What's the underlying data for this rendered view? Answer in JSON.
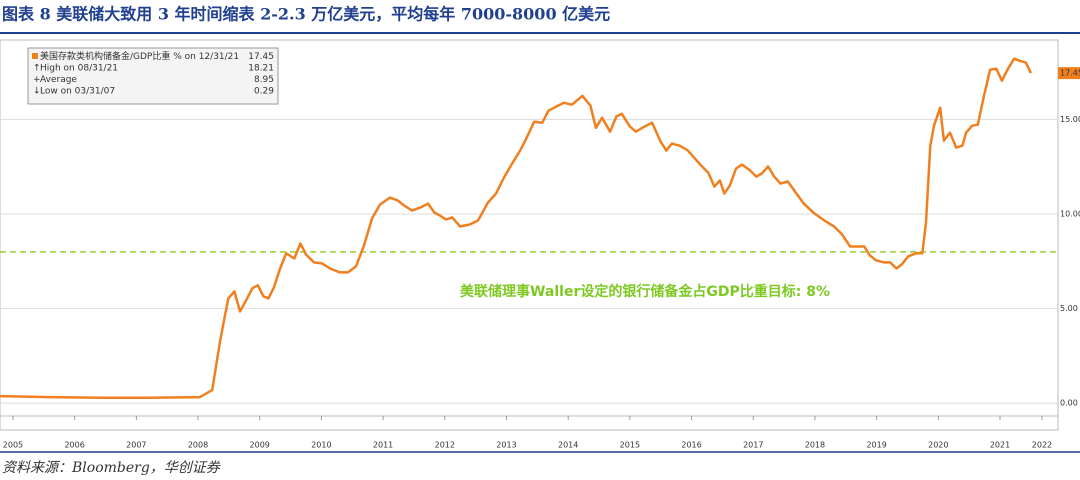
{
  "header": {
    "title": "图表 8  美联储大致用 3 年时间缩表 2-2.3 万亿美元，平均每年 7000-8000 亿美元"
  },
  "chart_data": {
    "type": "line",
    "x": [
      2005.29,
      2006.1,
      2006.91,
      2007.72,
      2008.53,
      2008.73,
      2008.86,
      2008.99,
      2009.09,
      2009.18,
      2009.28,
      2009.38,
      2009.47,
      2009.56,
      2009.64,
      2009.73,
      2009.83,
      2009.93,
      2010.06,
      2010.16,
      2010.25,
      2010.38,
      2010.51,
      2010.64,
      2010.8,
      2010.93,
      2011.06,
      2011.19,
      2011.32,
      2011.45,
      2011.61,
      2011.74,
      2011.84,
      2011.97,
      2012.1,
      2012.23,
      2012.33,
      2012.42,
      2012.52,
      2012.62,
      2012.75,
      2012.91,
      2013.04,
      2013.2,
      2013.33,
      2013.46,
      2013.59,
      2013.72,
      2013.82,
      2013.95,
      2014.08,
      2014.18,
      2014.3,
      2014.43,
      2014.56,
      2014.73,
      2014.86,
      2014.95,
      2015.05,
      2015.18,
      2015.28,
      2015.37,
      2015.5,
      2015.6,
      2015.7,
      2015.86,
      2015.99,
      2016.09,
      2016.18,
      2016.31,
      2016.44,
      2016.64,
      2016.77,
      2016.87,
      2016.96,
      2017.03,
      2017.12,
      2017.22,
      2017.32,
      2017.45,
      2017.55,
      2017.64,
      2017.74,
      2017.84,
      2017.94,
      2018.06,
      2018.19,
      2018.32,
      2018.49,
      2018.65,
      2018.81,
      2018.94,
      2019.07,
      2019.17,
      2019.3,
      2019.39,
      2019.49,
      2019.62,
      2019.72,
      2019.82,
      2019.91,
      2020.01,
      2020.14,
      2020.24,
      2020.3,
      2020.37,
      2020.43,
      2020.53,
      2020.59,
      2020.69,
      2020.79,
      2020.89,
      2020.95,
      2021.05,
      2021.14,
      2021.24,
      2021.34,
      2021.44,
      2021.53,
      2021.63,
      2021.73,
      2021.82,
      2021.92,
      2022.0
    ],
    "series": [
      {
        "name": "美国存款类机构储备金/GDP比重 % on 12/31/21",
        "color": "#f07f1f",
        "values": [
          0.37,
          0.32,
          0.29,
          0.29,
          0.32,
          0.69,
          3.32,
          5.54,
          5.91,
          4.85,
          5.44,
          6.07,
          6.23,
          5.65,
          5.54,
          6.12,
          7.12,
          7.92,
          7.65,
          8.44,
          7.86,
          7.44,
          7.39,
          7.12,
          6.91,
          6.91,
          7.23,
          8.34,
          9.76,
          10.5,
          10.87,
          10.71,
          10.45,
          10.18,
          10.34,
          10.55,
          10.08,
          9.92,
          9.71,
          9.82,
          9.34,
          9.45,
          9.66,
          10.61,
          11.08,
          11.93,
          12.66,
          13.35,
          13.98,
          14.88,
          14.83,
          15.46,
          15.67,
          15.88,
          15.78,
          16.25,
          15.73,
          14.56,
          15.09,
          14.35,
          15.15,
          15.3,
          14.62,
          14.35,
          14.56,
          14.83,
          13.88,
          13.35,
          13.72,
          13.61,
          13.35,
          12.61,
          12.19,
          11.45,
          11.77,
          11.08,
          11.5,
          12.4,
          12.61,
          12.3,
          11.98,
          12.14,
          12.51,
          11.98,
          11.61,
          11.72,
          11.13,
          10.55,
          10.03,
          9.66,
          9.34,
          8.92,
          8.28,
          8.28,
          8.28,
          7.81,
          7.55,
          7.44,
          7.44,
          7.12,
          7.34,
          7.76,
          7.92,
          7.92,
          9.55,
          13.61,
          14.67,
          15.62,
          13.88,
          14.3,
          13.51,
          13.61,
          14.3,
          14.67,
          14.72,
          16.25,
          17.63,
          17.68,
          17.05,
          17.68,
          18.21,
          18.1,
          18.0,
          17.45
        ]
      }
    ],
    "xlim": [
      2005.29,
      2022.44
    ],
    "xticks": [
      {
        "value": 2005.5,
        "label": "2005"
      },
      {
        "value": 2006.5,
        "label": "2006"
      },
      {
        "value": 2007.5,
        "label": "2007"
      },
      {
        "value": 2008.5,
        "label": "2008"
      },
      {
        "value": 2009.5,
        "label": "2009"
      },
      {
        "value": 2010.5,
        "label": "2010"
      },
      {
        "value": 2011.5,
        "label": "2011"
      },
      {
        "value": 2012.5,
        "label": "2012"
      },
      {
        "value": 2013.5,
        "label": "2013"
      },
      {
        "value": 2014.5,
        "label": "2014"
      },
      {
        "value": 2015.5,
        "label": "2015"
      },
      {
        "value": 2016.5,
        "label": "2016"
      },
      {
        "value": 2017.5,
        "label": "2017"
      },
      {
        "value": 2018.5,
        "label": "2018"
      },
      {
        "value": 2019.5,
        "label": "2019"
      },
      {
        "value": 2020.5,
        "label": "2020"
      },
      {
        "value": 2021.5,
        "label": "2021"
      },
      {
        "value": 2022.18,
        "label": "2022"
      }
    ],
    "ylim": [
      -1.42,
      19.2
    ],
    "yticks": [
      {
        "value": 0,
        "label": "0.00"
      },
      {
        "value": 5,
        "label": "5.00"
      },
      {
        "value": 10,
        "label": "10.00"
      },
      {
        "value": 15,
        "label": "15.00"
      }
    ],
    "grid": true,
    "legend": "top-left",
    "legend_stats": [
      {
        "label": "High on 08/31/21",
        "value": 18.21
      },
      {
        "label": "Average",
        "value": 8.95
      },
      {
        "label": "Low on 03/31/07",
        "value": 0.29
      }
    ],
    "reference_line": {
      "value": 8,
      "color": "#9acd32",
      "label": "美联储理事Waller设定的银行储备金占GDP比重目标: 8%"
    }
  },
  "footer": {
    "source": "资料来源：Bloomberg，华创证券"
  }
}
